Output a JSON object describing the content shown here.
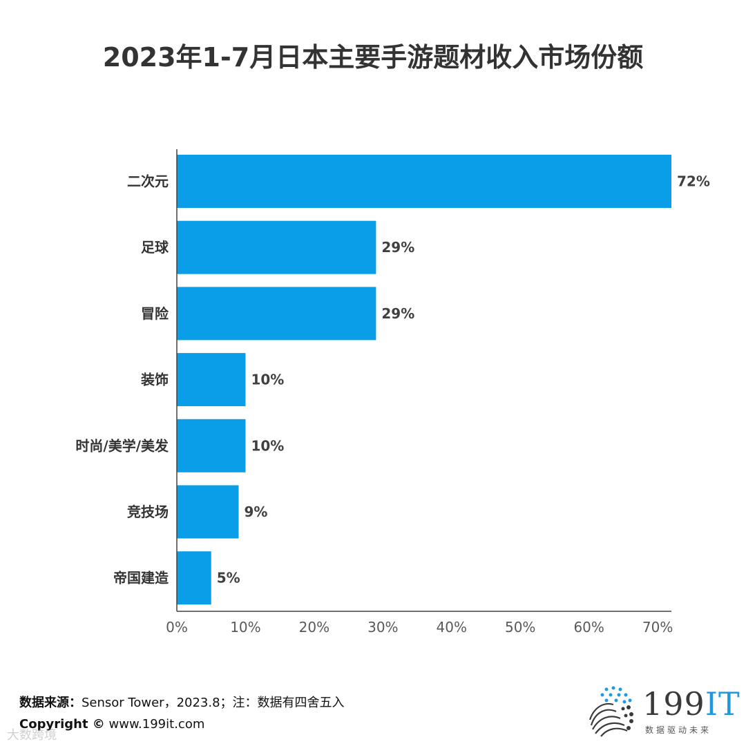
{
  "title": "2023年1-7月日本主要手游题材收入市场份额",
  "chart_data": {
    "type": "bar",
    "orientation": "horizontal",
    "title": "2023年1-7月日本主要手游题材收入市场份额",
    "categories": [
      "二次元",
      "足球",
      "冒险",
      "装饰",
      "时尚/美学/美发",
      "竞技场",
      "帝国建造"
    ],
    "values": [
      72,
      29,
      29,
      10,
      10,
      9,
      5
    ],
    "value_labels": [
      "72%",
      "29%",
      "29%",
      "10%",
      "10%",
      "9%",
      "5%"
    ],
    "xlim": [
      0,
      72
    ],
    "xticks": [
      0,
      10,
      20,
      30,
      40,
      50,
      60,
      70
    ],
    "xtick_labels": [
      "0%",
      "10%",
      "20%",
      "30%",
      "40%",
      "50%",
      "60%",
      "70%"
    ],
    "xlabel": "",
    "ylabel": "",
    "grid": false,
    "bar_color": "#0a9ee8"
  },
  "footer": {
    "source_label": "数据来源：",
    "source_text": "Sensor Tower，2023.8；注：数据有四舍五入",
    "copyright_label": "Copyright ©",
    "copyright_url": "www.199it.com"
  },
  "watermark": "大数跨境",
  "logo": {
    "name_digits": "199",
    "name_it": "IT",
    "tagline": "数据驱动未来"
  }
}
